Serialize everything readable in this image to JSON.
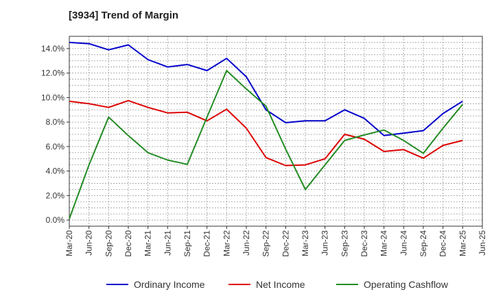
{
  "chart_data": {
    "type": "line",
    "title": "[3934]  Trend of Margin",
    "x": [
      "Mar-20",
      "Jun-20",
      "Sep-20",
      "Dec-20",
      "Mar-21",
      "Jun-21",
      "Sep-21",
      "Dec-21",
      "Mar-22",
      "Jun-22",
      "Sep-22",
      "Dec-22",
      "Mar-23",
      "Jun-23",
      "Sep-23",
      "Dec-23",
      "Mar-24",
      "Jun-24",
      "Sep-24",
      "Dec-24",
      "Mar-25",
      "Jun-25"
    ],
    "yticks": [
      "0.0%",
      "2.0%",
      "4.0%",
      "6.0%",
      "8.0%",
      "10.0%",
      "12.0%",
      "14.0%"
    ],
    "ylim": [
      -0.5,
      15.0
    ],
    "grid": true,
    "legend_position": "bottom",
    "series": [
      {
        "name": "Ordinary Income",
        "color": "#0000cc",
        "values": [
          14.5,
          14.4,
          13.9,
          14.3,
          13.1,
          12.5,
          12.7,
          12.2,
          13.2,
          11.7,
          9.0,
          7.95,
          8.1,
          8.1,
          9.0,
          8.3,
          6.9,
          7.1,
          7.3,
          8.7,
          9.7,
          null
        ]
      },
      {
        "name": "Net Income",
        "color": "#dd0000",
        "values": [
          9.7,
          9.5,
          9.2,
          9.75,
          9.2,
          8.75,
          8.8,
          8.1,
          9.05,
          7.5,
          5.1,
          4.45,
          4.5,
          5.0,
          7.0,
          6.6,
          5.6,
          5.75,
          5.05,
          6.1,
          6.5,
          null
        ]
      },
      {
        "name": "Operating Cashflow",
        "color": "#228b22",
        "values": [
          0.1,
          4.5,
          8.4,
          6.9,
          5.5,
          4.9,
          4.55,
          8.4,
          12.2,
          10.7,
          9.3,
          5.8,
          2.5,
          4.5,
          6.5,
          6.95,
          7.35,
          6.5,
          5.45,
          7.5,
          9.45,
          null
        ]
      }
    ]
  }
}
